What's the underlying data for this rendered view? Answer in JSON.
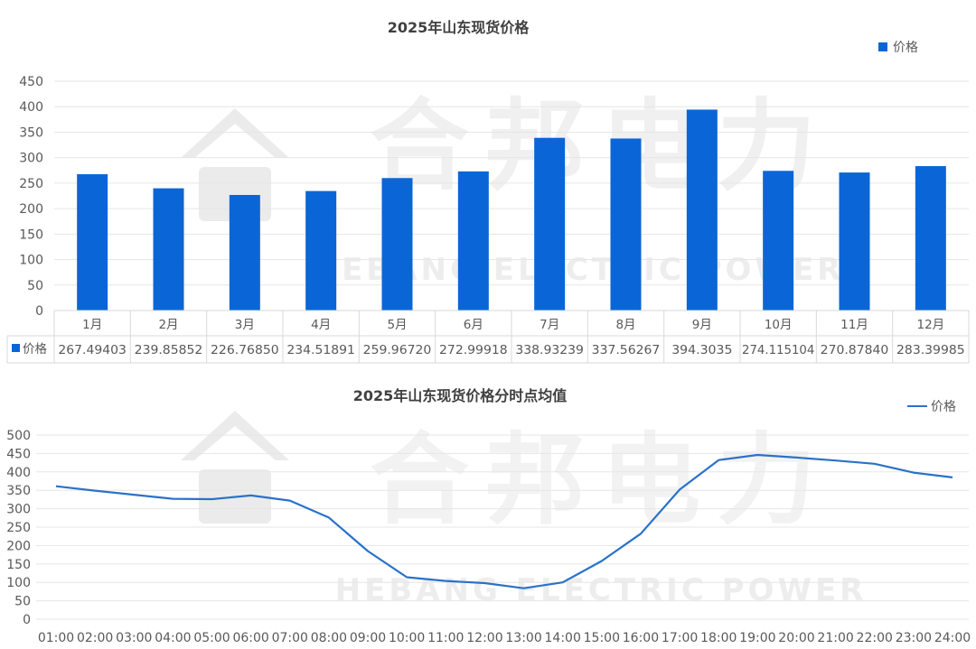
{
  "colors": {
    "bar": "#0a66d6",
    "line": "#2a72c9",
    "grid": "#e6e6e6",
    "text": "#595959"
  },
  "watermark": {
    "icon": "hebang-power-logo-icon",
    "brand": "合邦电力",
    "brand_en": "HEBANG ELECTRIC POWER"
  },
  "chart_data": [
    {
      "type": "bar",
      "title": "2025年山东现货价格",
      "categories": [
        "1月",
        "2月",
        "3月",
        "4月",
        "5月",
        "6月",
        "7月",
        "8月",
        "9月",
        "10月",
        "11月",
        "12月"
      ],
      "series": [
        {
          "name": "价格",
          "values": [
            267.49403,
            239.85852,
            226.7685,
            234.51891,
            259.9672,
            272.99918,
            338.93239,
            337.56267,
            394.3035,
            274.115104,
            270.8784,
            283.39985
          ],
          "labels": [
            "267.49403",
            "239.85852",
            "226.76850",
            "234.51891",
            "259.96720",
            "272.99918",
            "338.93239",
            "337.56267",
            "394.3035",
            "274.115104",
            "270.87840",
            "283.39985"
          ]
        }
      ],
      "ylim": [
        0,
        450
      ],
      "yticks": [
        "0",
        "50",
        "100",
        "150",
        "200",
        "250",
        "300",
        "350",
        "400",
        "450"
      ],
      "grid": true,
      "legend": "top-right",
      "data_table": true
    },
    {
      "type": "line",
      "title": "2025年山东现货价格分时点均值",
      "x": [
        "01:00",
        "02:00",
        "03:00",
        "04:00",
        "05:00",
        "06:00",
        "07:00",
        "08:00",
        "09:00",
        "10:00",
        "11:00",
        "12:00",
        "13:00",
        "14:00",
        "15:00",
        "16:00",
        "17:00",
        "18:00",
        "19:00",
        "20:00",
        "21:00",
        "22:00",
        "23:00",
        "24:00"
      ],
      "series": [
        {
          "name": "价格",
          "values": [
            361,
            349,
            338,
            327,
            326,
            336,
            322,
            276,
            185,
            114,
            104,
            98,
            84,
            100,
            158,
            232,
            352,
            432,
            446,
            439,
            431,
            422,
            398,
            385
          ]
        }
      ],
      "ylim": [
        0,
        500
      ],
      "yticks": [
        "0",
        "50",
        "100",
        "150",
        "200",
        "250",
        "300",
        "350",
        "400",
        "450",
        "500"
      ],
      "grid": true,
      "legend": "top-right"
    }
  ]
}
